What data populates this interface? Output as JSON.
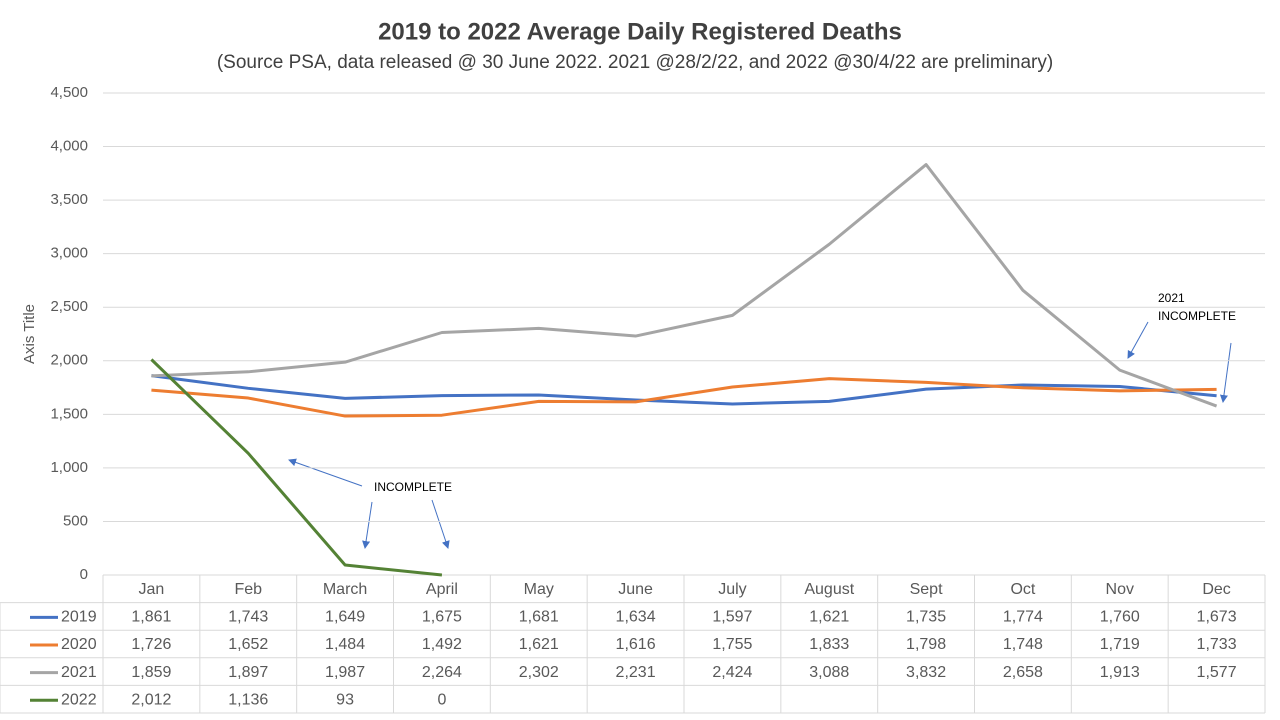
{
  "chart_data": {
    "type": "line",
    "title": "2019 to 2022 Average Daily Registered Deaths",
    "subtitle": "(Source PSA, data released @ 30 June 2022.  2021 @28/2/22, and 2022 @30/4/22 are preliminary)",
    "y_axis_label": "Axis Title",
    "categories": [
      "Jan",
      "Feb",
      "March",
      "April",
      "May",
      "June",
      "July",
      "August",
      "Sept",
      "Oct",
      "Nov",
      "Dec"
    ],
    "series": [
      {
        "name": "2019",
        "color": "#4472c4",
        "values": [
          1861,
          1743,
          1649,
          1675,
          1681,
          1634,
          1597,
          1621,
          1735,
          1774,
          1760,
          1673
        ],
        "value_labels": [
          "1,861",
          "1,743",
          "1,649",
          "1,675",
          "1,681",
          "1,634",
          "1,597",
          "1,621",
          "1,735",
          "1,774",
          "1,760",
          "1,673"
        ]
      },
      {
        "name": "2020",
        "color": "#ed7d31",
        "values": [
          1726,
          1652,
          1484,
          1492,
          1621,
          1616,
          1755,
          1833,
          1798,
          1748,
          1719,
          1733
        ],
        "value_labels": [
          "1,726",
          "1,652",
          "1,484",
          "1,492",
          "1,621",
          "1,616",
          "1,755",
          "1,833",
          "1,798",
          "1,748",
          "1,719",
          "1,733"
        ]
      },
      {
        "name": "2021",
        "color": "#a5a5a5",
        "values": [
          1859,
          1897,
          1987,
          2264,
          2302,
          2231,
          2424,
          3088,
          3832,
          2658,
          1913,
          1577
        ],
        "value_labels": [
          "1,859",
          "1,897",
          "1,987",
          "2,264",
          "2,302",
          "2,231",
          "2,424",
          "3,088",
          "3,832",
          "2,658",
          "1,913",
          "1,577"
        ]
      },
      {
        "name": "2022",
        "color": "#548235",
        "values": [
          2012,
          1136,
          93,
          0,
          null,
          null,
          null,
          null,
          null,
          null,
          null,
          null
        ],
        "value_labels": [
          "2,012",
          "1,136",
          "93",
          "0",
          null,
          null,
          null,
          null,
          null,
          null,
          null,
          null
        ]
      }
    ],
    "ylim": [
      0,
      4500
    ],
    "yticks": [
      0,
      500,
      {
        "value": 1000,
        "label": "1,000"
      },
      {
        "value": 1500,
        "label": "1,500"
      },
      {
        "value": 2000,
        "label": "2,000"
      },
      {
        "value": 2500,
        "label": "2,500"
      },
      {
        "value": 3000,
        "label": "3,000"
      },
      {
        "value": 3500,
        "label": "3,500"
      },
      {
        "value": 4000,
        "label": "4,000"
      },
      {
        "value": 4500,
        "label": "4,500"
      }
    ],
    "grid": true,
    "annotations": [
      "INCOMPLETE",
      "2021",
      "INCOMPLETE"
    ]
  }
}
